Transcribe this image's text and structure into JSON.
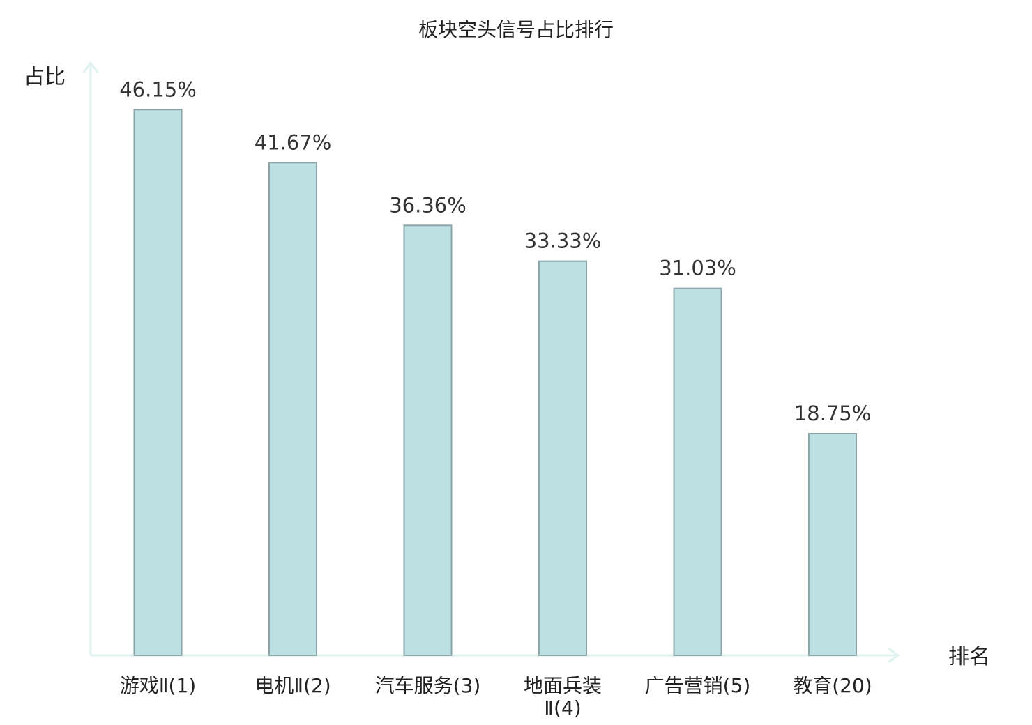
{
  "chart_data": {
    "type": "bar",
    "title": "板块空头信号占比排行",
    "ylabel": "占比",
    "xlabel": "排名",
    "ylim": [
      0,
      50
    ],
    "categories": [
      [
        "游戏Ⅱ(1)"
      ],
      [
        "电机Ⅱ(2)"
      ],
      [
        "汽车服务(3)"
      ],
      [
        "地面兵装",
        "Ⅱ(4)"
      ],
      [
        "广告营销(5)"
      ],
      [
        "教育(20)"
      ]
    ],
    "values": [
      46.15,
      41.67,
      36.36,
      33.33,
      31.03,
      18.75
    ],
    "value_labels": [
      "46.15%",
      "41.67%",
      "36.36%",
      "33.33%",
      "31.03%",
      "18.75%"
    ],
    "highlight_index": 5,
    "colors": {
      "bar_fill": "#bde0e3",
      "bar_stroke": "#8aa6a9",
      "axis": "#e0f2ef",
      "highlight_label": "#e02020"
    },
    "grid": false
  }
}
